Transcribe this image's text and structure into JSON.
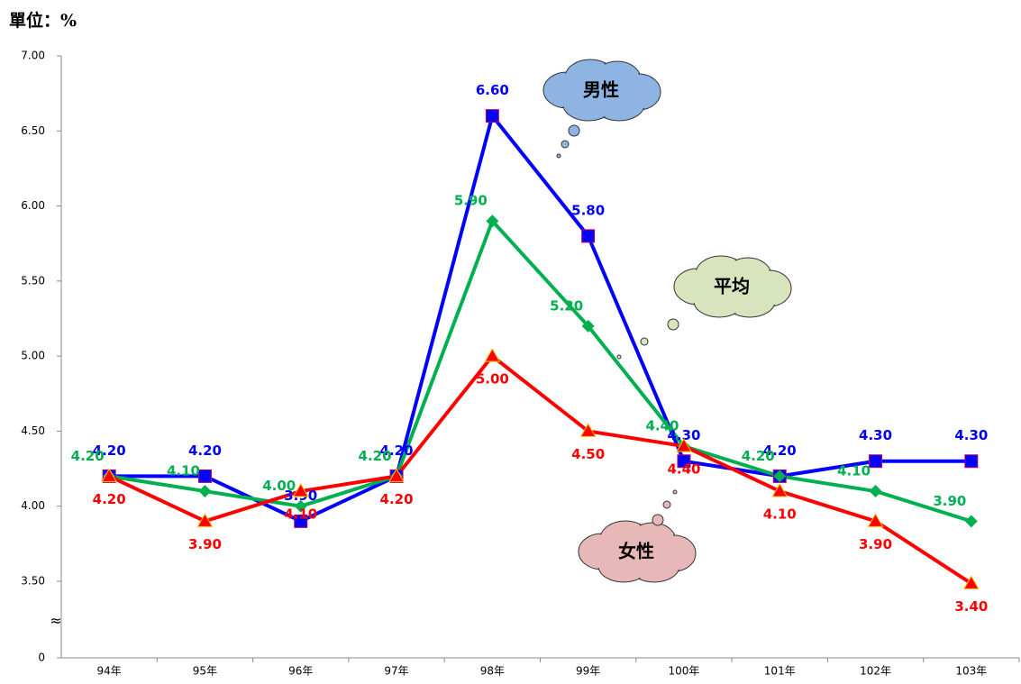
{
  "chart_data": {
    "type": "line",
    "unit_label": "單位：%",
    "categories": [
      "94年",
      "95年",
      "96年",
      "97年",
      "98年",
      "99年",
      "100年",
      "101年",
      "102年",
      "103年"
    ],
    "series": [
      {
        "name": "男性",
        "color": "#0000ff",
        "marker": "square",
        "values": [
          4.2,
          4.2,
          3.9,
          4.2,
          6.6,
          5.8,
          4.3,
          4.2,
          4.3,
          4.3
        ],
        "value_labels": [
          "4.20",
          "4.20",
          "3.90",
          "4.20",
          "6.60",
          "5.80",
          "4.30",
          "4.20",
          "4.30",
          "4.30"
        ]
      },
      {
        "name": "平均",
        "color": "#00b050",
        "marker": "diamond",
        "values": [
          4.2,
          4.1,
          4.0,
          4.2,
          5.9,
          5.2,
          4.4,
          4.2,
          4.1,
          3.9
        ],
        "value_labels": [
          "4.20",
          "4.10",
          "4.00",
          "4.20",
          "5.90",
          "5.20",
          "4.40",
          "4.20",
          "4.10",
          "3.90"
        ]
      },
      {
        "name": "女性",
        "color": "#ff0000",
        "marker": "triangle",
        "values": [
          4.2,
          3.9,
          4.1,
          4.2,
          5.0,
          4.5,
          4.4,
          4.1,
          3.9,
          3.4
        ],
        "value_labels": [
          "4.20",
          "3.90",
          "4.10",
          "4.20",
          "5.00",
          "4.50",
          "4.40",
          "4.10",
          "3.90",
          "3.40"
        ]
      }
    ],
    "ylim": [
      0,
      7
    ],
    "yticks": [
      0,
      {
        "value": 3.5,
        "label": "3.50"
      },
      {
        "value": 4,
        "label": "4.00"
      },
      {
        "value": 4.5,
        "label": "4.50"
      },
      {
        "value": 5,
        "label": "5.00"
      },
      {
        "value": 5.5,
        "label": "5.50"
      },
      {
        "value": 6,
        "label": "6.00"
      },
      {
        "value": 6.5,
        "label": "6.50"
      },
      {
        "value": 7,
        "label": "7.00"
      }
    ],
    "axis_break": true,
    "grid": false
  }
}
